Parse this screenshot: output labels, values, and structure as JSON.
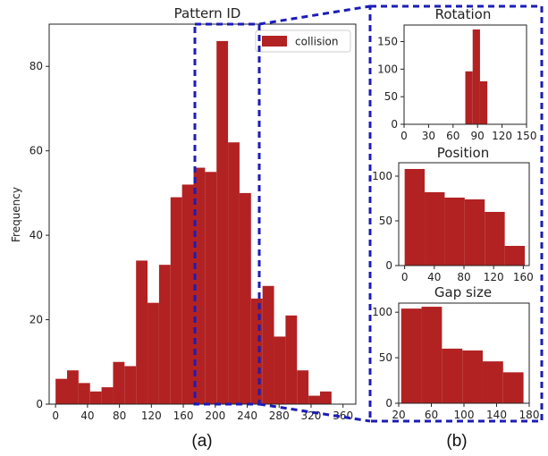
{
  "bar_color": "#b22222",
  "zoom_color": "#1c1cb8",
  "captions": {
    "a": "(a)",
    "b": "(b)"
  },
  "chart_data": [
    {
      "id": "main",
      "type": "histogram",
      "title": "Pattern ID",
      "xlabel": "",
      "ylabel": "Frequency",
      "legend": [
        "collision"
      ],
      "legend_position": "top-right",
      "xlim": [
        -8,
        376
      ],
      "ylim": [
        0,
        90
      ],
      "xticks": [
        0,
        40,
        80,
        120,
        160,
        200,
        240,
        280,
        320,
        360
      ],
      "yticks": [
        0,
        20,
        40,
        60,
        80
      ],
      "bin_start": 0,
      "bin_width": 14.4,
      "values": [
        6,
        8,
        5,
        3,
        4,
        10,
        9,
        34,
        24,
        33,
        49,
        52,
        56,
        55,
        86,
        62,
        50,
        25,
        28,
        16,
        21,
        8,
        2,
        3
      ]
    },
    {
      "id": "rotation",
      "type": "histogram",
      "title": "Rotation",
      "xlim": [
        0,
        150
      ],
      "ylim": [
        0,
        180
      ],
      "xticks": [
        0,
        30,
        60,
        90,
        120,
        150
      ],
      "yticks": [
        0,
        50,
        100,
        150
      ],
      "edges": [
        75,
        84,
        93,
        102
      ],
      "values": [
        96,
        172,
        78
      ]
    },
    {
      "id": "position",
      "type": "histogram",
      "title": "Position",
      "xlim": [
        -8,
        168
      ],
      "ylim": [
        0,
        115
      ],
      "xticks": [
        0,
        40,
        80,
        120,
        160
      ],
      "yticks": [
        0,
        50,
        100
      ],
      "edges": [
        0,
        27,
        54,
        81,
        108,
        135,
        162
      ],
      "values": [
        108,
        82,
        76,
        74,
        60,
        22
      ]
    },
    {
      "id": "gap",
      "type": "histogram",
      "title": "Gap size",
      "xlim": [
        20,
        180
      ],
      "ylim": [
        0,
        110
      ],
      "xticks": [
        20,
        60,
        100,
        140,
        180
      ],
      "yticks": [
        0,
        50,
        100
      ],
      "edges": [
        23,
        48,
        73,
        98,
        123,
        148,
        173
      ],
      "values": [
        104,
        106,
        60,
        58,
        46,
        34
      ]
    }
  ]
}
